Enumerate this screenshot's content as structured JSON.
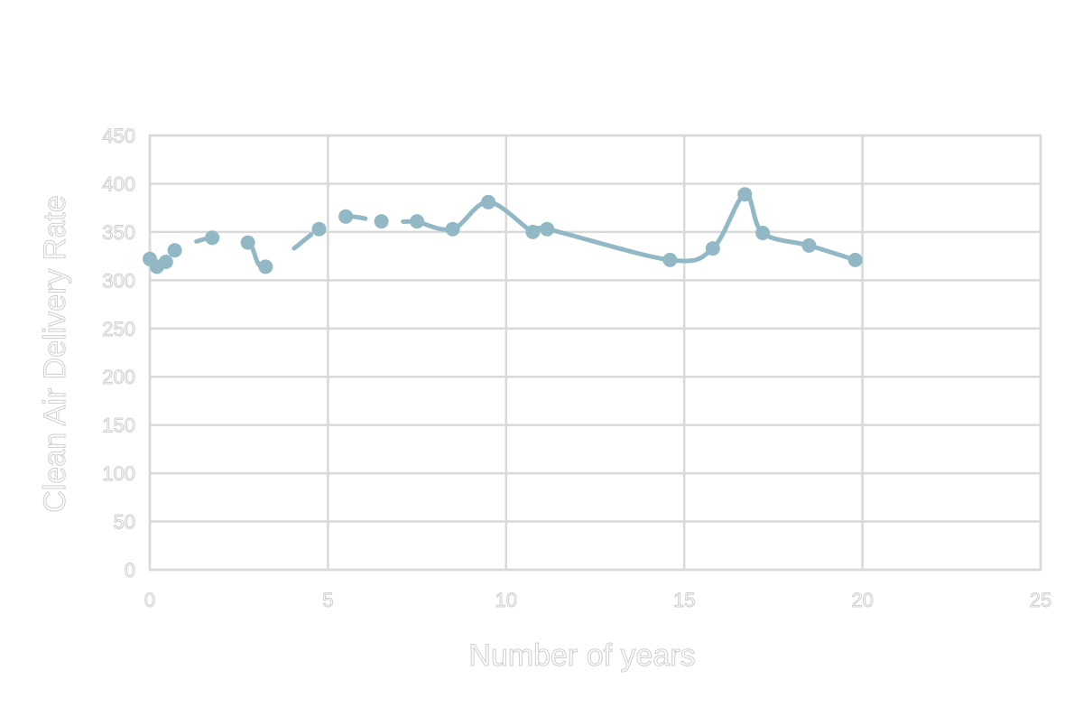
{
  "chart_data": {
    "type": "scatter",
    "title": "",
    "xlabel": "Number of years",
    "ylabel": "Clean Air Delivery Rate",
    "xlim": [
      0,
      25
    ],
    "ylim": [
      0,
      450
    ],
    "xticks": [
      0,
      5,
      10,
      15,
      20,
      25
    ],
    "yticks": [
      0,
      50,
      100,
      150,
      200,
      250,
      300,
      350,
      400,
      450
    ],
    "grid": true,
    "legend": "none",
    "series_color": "#92b8c6",
    "series": [
      {
        "points": [
          [
            0.0,
            322
          ],
          [
            0.2,
            314
          ],
          [
            0.45,
            319
          ],
          [
            0.7,
            331
          ],
          [
            1.75,
            344
          ],
          [
            2.75,
            339
          ],
          [
            3.25,
            314
          ],
          [
            4.75,
            353
          ],
          [
            5.5,
            366
          ],
          [
            6.5,
            361
          ],
          [
            7.5,
            361
          ],
          [
            8.5,
            353
          ],
          [
            9.5,
            381
          ],
          [
            10.75,
            350
          ],
          [
            11.15,
            353
          ],
          [
            14.6,
            321
          ],
          [
            15.8,
            333
          ],
          [
            16.7,
            389
          ],
          [
            17.2,
            349
          ],
          [
            18.5,
            336
          ],
          [
            19.8,
            321
          ]
        ],
        "line_segments": [
          {
            "style": "dashed",
            "from": 0,
            "to": 11
          },
          {
            "style": "solid",
            "from": 10,
            "to": 21
          }
        ]
      }
    ]
  }
}
